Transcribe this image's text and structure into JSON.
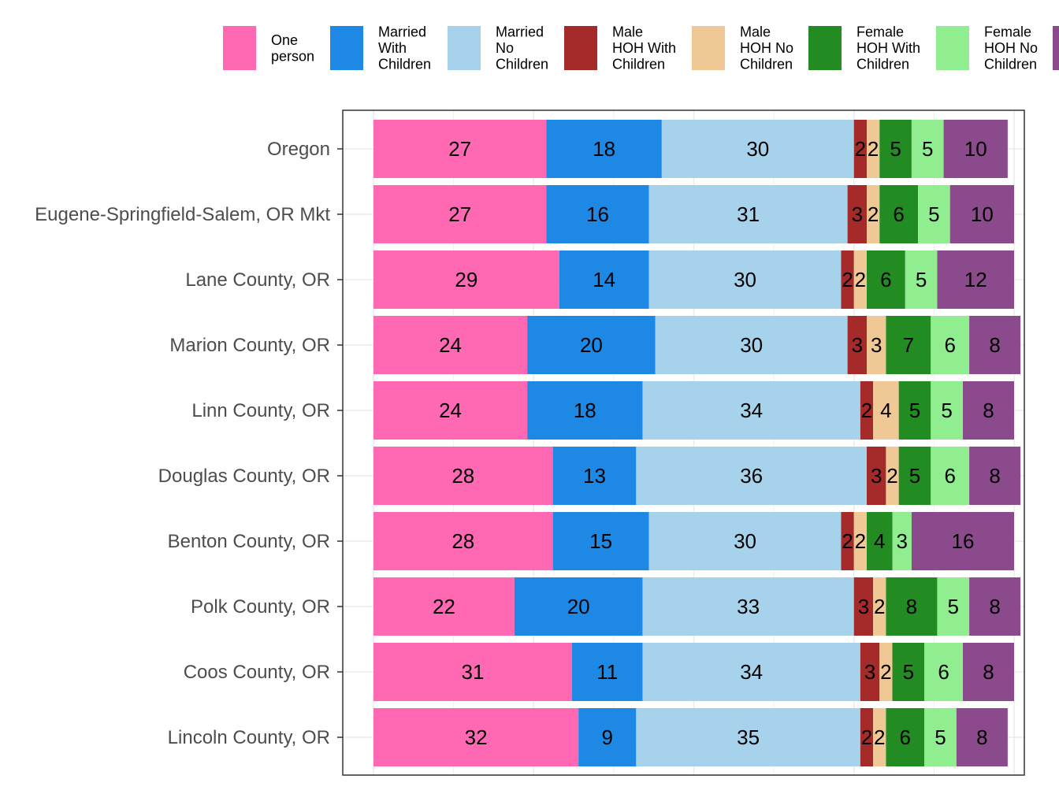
{
  "chart_data": {
    "type": "bar",
    "orientation": "horizontal",
    "stacked": true,
    "title": "",
    "xlabel": "",
    "ylabel": "",
    "xlim": [
      0,
      100
    ],
    "grid": true,
    "legend_position": "top",
    "categories": [
      "Oregon",
      "Eugene-Springfield-Salem, OR Mkt",
      "Lane County, OR",
      "Marion County, OR",
      "Linn County, OR",
      "Douglas County, OR",
      "Benton County, OR",
      "Polk County, OR",
      "Coos County, OR",
      "Lincoln County, OR"
    ],
    "series": [
      {
        "name": "One person",
        "legend_lines": [
          "One",
          "person"
        ],
        "color": "#ff69b4",
        "values": [
          27,
          27,
          29,
          24,
          24,
          28,
          28,
          22,
          31,
          32
        ]
      },
      {
        "name": "Married With Children",
        "legend_lines": [
          "Married",
          "With",
          "Children"
        ],
        "color": "#1e88e5",
        "values": [
          18,
          16,
          14,
          20,
          18,
          13,
          15,
          20,
          11,
          9
        ]
      },
      {
        "name": "Married No Children",
        "legend_lines": [
          "Married",
          "No",
          "Children"
        ],
        "color": "#a6d2ec",
        "values": [
          30,
          31,
          30,
          30,
          34,
          36,
          30,
          33,
          34,
          35
        ]
      },
      {
        "name": "Male HOH With Children",
        "legend_lines": [
          "Male",
          "HOH With",
          "Children"
        ],
        "color": "#a52a2a",
        "values": [
          2,
          3,
          2,
          3,
          2,
          3,
          2,
          3,
          3,
          2
        ]
      },
      {
        "name": "Male HOH No Children",
        "legend_lines": [
          "Male",
          "HOH No",
          "Children"
        ],
        "color": "#f0c896",
        "values": [
          2,
          2,
          2,
          3,
          4,
          2,
          2,
          2,
          2,
          2
        ]
      },
      {
        "name": "Female HOH With Children",
        "legend_lines": [
          "Female",
          "HOH With",
          "Children"
        ],
        "color": "#228b22",
        "values": [
          5,
          6,
          6,
          7,
          5,
          5,
          4,
          8,
          5,
          6
        ]
      },
      {
        "name": "Female HOH No Children",
        "legend_lines": [
          "Female",
          "HOH No",
          "Children"
        ],
        "color": "#90ee90",
        "values": [
          5,
          5,
          5,
          6,
          5,
          6,
          3,
          5,
          6,
          5
        ]
      },
      {
        "name": "",
        "legend_lines": [],
        "color": "#8b4a8b",
        "values": [
          10,
          10,
          12,
          8,
          8,
          8,
          16,
          8,
          8,
          8
        ]
      }
    ]
  }
}
